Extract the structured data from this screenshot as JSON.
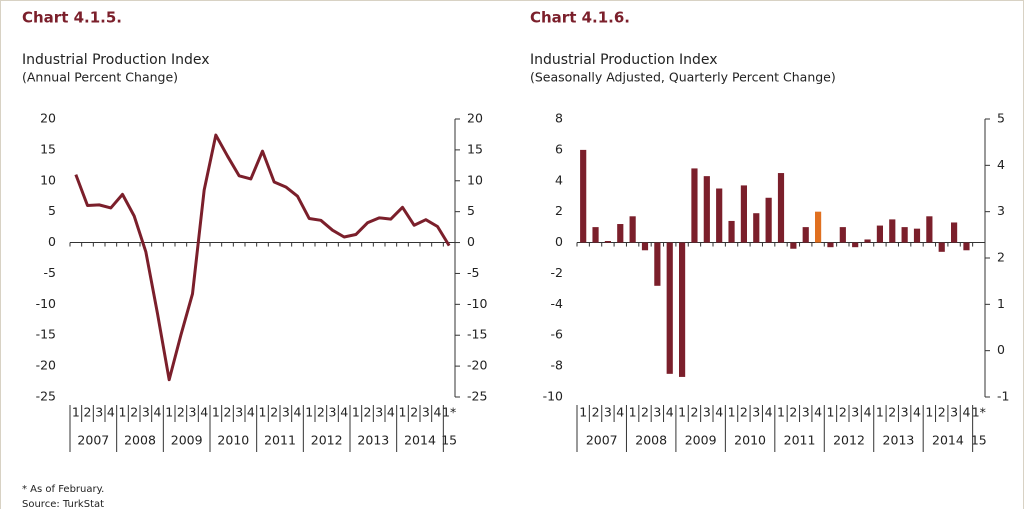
{
  "chart_data": [
    {
      "type": "line",
      "title": "Chart 4.1.5.",
      "subtitle": "Industrial Production Index",
      "note": "(Annual Percent Change)",
      "categories": [
        "1",
        "2",
        "3",
        "4",
        "1",
        "2",
        "3",
        "4",
        "1",
        "2",
        "3",
        "4",
        "1",
        "2",
        "3",
        "4",
        "1",
        "2",
        "3",
        "4",
        "1",
        "2",
        "3",
        "4",
        "1",
        "2",
        "3",
        "4",
        "1",
        "2",
        "3",
        "4",
        "1*"
      ],
      "years": [
        "2007",
        "2008",
        "2009",
        "2010",
        "2011",
        "2012",
        "2013",
        "2014",
        "15"
      ],
      "series": [
        {
          "color": "#7b1f2b",
          "values": [
            11,
            6,
            6.1,
            5.6,
            7.8,
            4.3,
            -1.5,
            -11.5,
            -22.2,
            -15,
            -8.3,
            8.5,
            17.4,
            14,
            10.8,
            10.3,
            14.8,
            9.8,
            9,
            7.5,
            3.9,
            3.6,
            2,
            0.9,
            1.3,
            3.2,
            4,
            3.8,
            5.7,
            2.8,
            3.7,
            2.6,
            -0.5
          ]
        }
      ],
      "ylim": [
        -25,
        20
      ],
      "yticks": [
        -25,
        -20,
        -15,
        -10,
        -5,
        0,
        5,
        10,
        15,
        20
      ],
      "y2lim": [
        -25,
        20
      ],
      "y2ticks": [
        -25,
        -20,
        -15,
        -10,
        -5,
        0,
        5,
        10,
        15,
        20
      ]
    },
    {
      "type": "bar",
      "title": "Chart 4.1.6.",
      "subtitle": "Industrial Production Index",
      "note": "(Seasonally Adjusted, Quarterly Percent Change)",
      "categories": [
        "1",
        "2",
        "3",
        "4",
        "1",
        "2",
        "3",
        "4",
        "1",
        "2",
        "3",
        "4",
        "1",
        "2",
        "3",
        "4",
        "1",
        "2",
        "3",
        "4",
        "1",
        "2",
        "3",
        "4",
        "1",
        "2",
        "3",
        "4",
        "1",
        "2",
        "3",
        "4",
        "1*"
      ],
      "years": [
        "2007",
        "2008",
        "2009",
        "2010",
        "2011",
        "2012",
        "2013",
        "2014",
        "15"
      ],
      "series": [
        {
          "color": "#7b1f2b",
          "colors": [
            "#7b1f2b",
            "#7b1f2b",
            "#7b1f2b",
            "#7b1f2b",
            "#7b1f2b",
            "#7b1f2b",
            "#7b1f2b",
            "#7b1f2b",
            "#7b1f2b",
            "#7b1f2b",
            "#7b1f2b",
            "#7b1f2b",
            "#7b1f2b",
            "#7b1f2b",
            "#7b1f2b",
            "#7b1f2b",
            "#7b1f2b",
            "#7b1f2b",
            "#7b1f2b",
            "#e07020",
            "#7b1f2b",
            "#7b1f2b",
            "#7b1f2b",
            "#7b1f2b",
            "#7b1f2b",
            "#7b1f2b",
            "#7b1f2b",
            "#7b1f2b",
            "#7b1f2b",
            "#7b1f2b",
            "#7b1f2b",
            "#7b1f2b",
            "#7b1f2b"
          ],
          "values": [
            6,
            1,
            0.1,
            1.2,
            1.7,
            -0.5,
            -2.8,
            -8.5,
            -8.7,
            4.8,
            4.3,
            3.5,
            1.4,
            3.7,
            1.9,
            2.9,
            4.5,
            -0.4,
            1,
            2,
            -0.3,
            1,
            -0.3,
            0.2,
            1.1,
            1.5,
            1,
            0.9,
            1.7,
            -0.6,
            1.3,
            -0.5,
            null
          ]
        }
      ],
      "ylim": [
        -10,
        8
      ],
      "yticks": [
        -10,
        -8,
        -6,
        -4,
        -2,
        0,
        2,
        4,
        6,
        8
      ],
      "y2lim": [
        -1,
        5
      ],
      "y2ticks": [
        -1,
        0,
        1,
        2,
        3,
        4,
        5
      ]
    }
  ],
  "footnotes": [
    "* As of February.",
    "Source: TurkStat"
  ]
}
